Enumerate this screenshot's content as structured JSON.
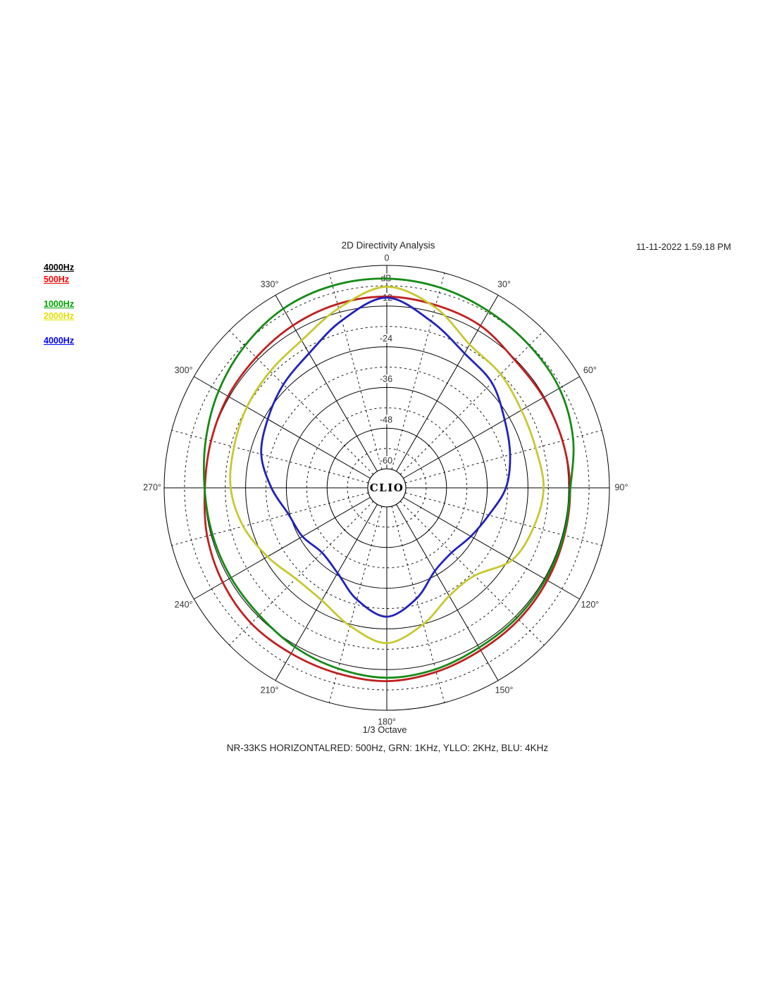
{
  "header": {
    "title": "2D Directivity Analysis",
    "timestamp": "11-11-2022 1.59.18 PM"
  },
  "legend": {
    "groups": [
      [
        {
          "label": "4000Hz",
          "color": "#000000"
        },
        {
          "label": "500Hz",
          "color": "#ff0000"
        }
      ],
      [
        {
          "label": "1000Hz",
          "color": "#00a000"
        },
        {
          "label": "2000Hz",
          "color": "#e0e000"
        }
      ],
      [
        {
          "label": "4000Hz",
          "color": "#0000ff"
        }
      ]
    ]
  },
  "footer": {
    "bottom_axis_label": "1/3 Octave",
    "caption": "NR-33KS HORIZONTALRED: 500Hz, GRN: 1KHz, YLLO: 2KHz, BLU: 4KHz"
  },
  "chart_data": {
    "type": "line",
    "polar": true,
    "title": "2D Directivity Analysis",
    "center_label": "CLIO",
    "units_label": "dB",
    "rlim": [
      -60,
      0
    ],
    "radial_ticks_db": [
      0,
      -12,
      -24,
      -36,
      -48,
      -60
    ],
    "radial_tick_labels": [
      "dB",
      "-12",
      "-24",
      "-36",
      "-48",
      "-60"
    ],
    "grid": "solid rings every 12 dB, dashed rings every 6 dB, solid spokes every 30 deg, dashed spokes every 15 deg",
    "angle_tick_labels": [
      "0",
      "30°",
      "60°",
      "90°",
      "120°",
      "150°",
      "180°",
      "210°",
      "240°",
      "270°",
      "300°",
      "330°"
    ],
    "angles_deg": [
      0,
      15,
      30,
      45,
      60,
      75,
      90,
      105,
      120,
      135,
      150,
      165,
      180,
      195,
      210,
      225,
      240,
      255,
      270,
      285,
      300,
      315,
      330,
      345
    ],
    "series": [
      {
        "name": "500Hz",
        "color": "#c02020",
        "values_db": [
          -9.2,
          -9.8,
          -10.4,
          -12.3,
          -12.3,
          -12.0,
          -11.6,
          -11.4,
          -11.0,
          -10.6,
          -10.3,
          -9.4,
          -8.6,
          -9.0,
          -9.2,
          -9.1,
          -9.8,
          -10.8,
          -12.0,
          -12.0,
          -11.6,
          -11.2,
          -10.3,
          -9.5
        ]
      },
      {
        "name": "1000Hz",
        "color": "#168a16",
        "values_db": [
          -3.9,
          -4.5,
          -5.5,
          -6.2,
          -6.9,
          -8.8,
          -11.5,
          -11.6,
          -11.6,
          -11.4,
          -11.2,
          -10.2,
          -9.6,
          -10.4,
          -11.4,
          -12.5,
          -12.6,
          -12.4,
          -11.9,
          -10.4,
          -8.4,
          -6.4,
          -4.6,
          -3.9
        ]
      },
      {
        "name": "2000Hz",
        "color": "#c8c832",
        "values_db": [
          -6.3,
          -10.5,
          -16.8,
          -18.2,
          -19.8,
          -20.2,
          -19.4,
          -20.8,
          -23.0,
          -29.0,
          -28.8,
          -24.0,
          -19.8,
          -23.5,
          -27.3,
          -27.7,
          -25.0,
          -21.8,
          -19.6,
          -19.0,
          -18.0,
          -17.0,
          -15.4,
          -10.8
        ]
      },
      {
        "name": "4000Hz",
        "color": "#2222bb",
        "values_db": [
          -9.5,
          -14.8,
          -19.8,
          -21.8,
          -25.5,
          -28.0,
          -30.5,
          -34.5,
          -37.0,
          -38.6,
          -37.3,
          -31.8,
          -27.6,
          -31.5,
          -36.6,
          -38.6,
          -36.9,
          -35.6,
          -31.6,
          -27.3,
          -25.1,
          -22.5,
          -19.8,
          -14.5
        ]
      }
    ]
  }
}
